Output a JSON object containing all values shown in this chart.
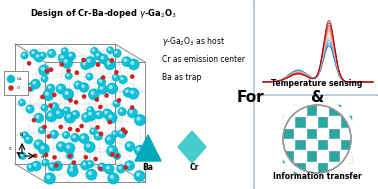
{
  "bg_color": "#e0e0e0",
  "panel_border": "#a0b8cc",
  "cyan_color": "#00bcd4",
  "red_color": "#cc2222",
  "purple_color": "#9b3fac",
  "teal_cb_color": "#2aa8a0",
  "white_color": "#ffffff",
  "label1": "γ-Ga₂O₃ as host",
  "label2": "Cr as emission center",
  "label3": "Ba as trap",
  "label_Ba": "Ba",
  "label_Cr": "Cr",
  "for_text": "For",
  "amp_text": "&",
  "temp_label": "Temperature sensing",
  "info_label": "Information transfer"
}
